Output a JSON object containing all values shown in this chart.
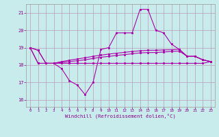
{
  "xlabel": "Windchill (Refroidissement éolien,°C)",
  "bg_color": "#c8ecec",
  "line_color": "#aa00aa",
  "grid_color": "#bb99bb",
  "tick_label_color": "#880088",
  "xlim": [
    -0.5,
    23.5
  ],
  "ylim": [
    15.6,
    21.5
  ],
  "yticks": [
    16,
    17,
    18,
    19,
    20,
    21
  ],
  "xticks": [
    0,
    1,
    2,
    3,
    4,
    5,
    6,
    7,
    8,
    9,
    10,
    11,
    12,
    13,
    14,
    15,
    16,
    17,
    18,
    19,
    20,
    21,
    22,
    23
  ],
  "curve1_x": [
    0,
    1,
    2,
    3,
    4,
    5,
    6,
    7,
    8,
    9,
    10,
    11,
    12,
    13,
    14,
    15,
    16,
    17,
    18,
    19,
    20,
    21,
    22,
    23
  ],
  "curve1_y": [
    19.0,
    18.85,
    18.1,
    18.1,
    17.8,
    17.1,
    16.85,
    16.3,
    17.0,
    18.9,
    19.0,
    19.85,
    19.85,
    19.85,
    21.2,
    21.2,
    20.0,
    19.85,
    19.2,
    18.9,
    18.5,
    18.5,
    18.3,
    18.2
  ],
  "curve2_x": [
    0,
    1,
    2,
    3,
    4,
    5,
    6,
    7,
    8,
    9,
    10,
    11,
    12,
    13,
    14,
    15,
    16,
    17,
    18,
    19,
    20,
    21,
    22,
    23
  ],
  "curve2_y": [
    19.0,
    18.85,
    18.1,
    18.1,
    18.1,
    18.1,
    18.1,
    18.1,
    18.1,
    18.1,
    18.1,
    18.1,
    18.1,
    18.1,
    18.1,
    18.1,
    18.1,
    18.1,
    18.1,
    18.1,
    18.1,
    18.1,
    18.1,
    18.2
  ],
  "curve3_x": [
    0,
    1,
    2,
    3,
    4,
    5,
    6,
    7,
    8,
    9,
    10,
    11,
    12,
    13,
    14,
    15,
    16,
    17,
    18,
    19,
    20,
    21,
    22,
    23
  ],
  "curve3_y": [
    19.0,
    18.1,
    18.1,
    18.1,
    18.15,
    18.2,
    18.25,
    18.3,
    18.38,
    18.45,
    18.5,
    18.55,
    18.6,
    18.65,
    18.7,
    18.72,
    18.72,
    18.75,
    18.78,
    18.8,
    18.5,
    18.5,
    18.3,
    18.2
  ],
  "curve4_x": [
    0,
    1,
    2,
    3,
    4,
    5,
    6,
    7,
    8,
    9,
    10,
    11,
    12,
    13,
    14,
    15,
    16,
    17,
    18,
    19,
    20,
    21,
    22,
    23
  ],
  "curve4_y": [
    19.0,
    18.1,
    18.1,
    18.1,
    18.2,
    18.28,
    18.35,
    18.42,
    18.5,
    18.57,
    18.63,
    18.68,
    18.73,
    18.78,
    18.82,
    18.85,
    18.85,
    18.87,
    18.88,
    18.9,
    18.5,
    18.5,
    18.3,
    18.2
  ]
}
